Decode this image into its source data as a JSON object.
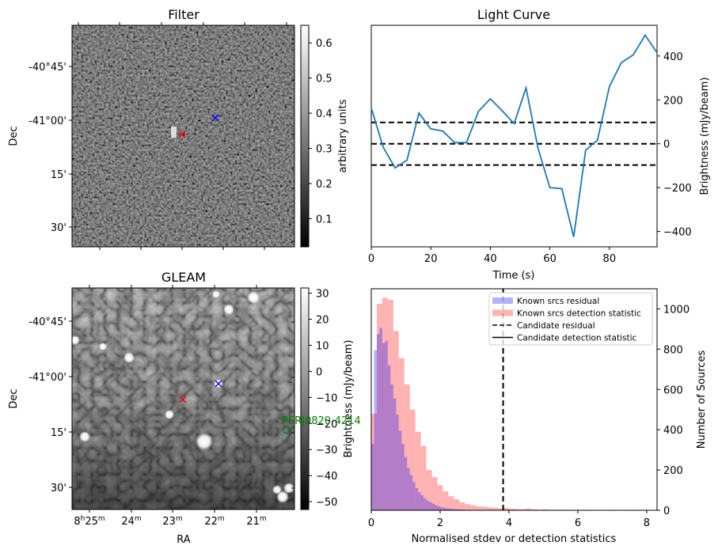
{
  "chart_data": [
    {
      "panel": "filter",
      "type": "heatmap",
      "title": "Filter",
      "xlabel": "",
      "ylabel": "Dec",
      "ytick_labels": [
        "-40°45'",
        "-41°00'",
        "15'",
        "30'"
      ],
      "colormap": "gray",
      "colorbar": {
        "label": "arbitrary units",
        "range": [
          0.02,
          0.65
        ],
        "tick_labels": [
          "0.1",
          "0.2",
          "0.3",
          "0.4",
          "0.5",
          "0.6"
        ],
        "ticks": [
          0.1,
          0.2,
          0.3,
          0.4,
          0.5,
          0.6
        ]
      },
      "markers": [
        {
          "name": "candidate",
          "symbol": "x",
          "color": "#ff0000"
        },
        {
          "name": "known-source",
          "symbol": "x",
          "color": "#0000ff"
        }
      ]
    },
    {
      "panel": "light-curve",
      "type": "line",
      "title": "Light Curve",
      "xlabel": "Time (s)",
      "ylabel": "Brightness (mJy/beam)",
      "xlim": [
        0,
        96
      ],
      "ylim": [
        -470,
        540
      ],
      "xtick_labels": [
        "0",
        "20",
        "40",
        "60",
        "80"
      ],
      "xticks": [
        0,
        20,
        40,
        60,
        80
      ],
      "ytick_labels": [
        "−400",
        "−200",
        "0",
        "200",
        "400"
      ],
      "yticks": [
        -400,
        -200,
        0,
        200,
        400
      ],
      "yaxis_side": "right",
      "series": [
        {
          "name": "light-curve",
          "color": "#1f77b4",
          "x": [
            0,
            4,
            8,
            12,
            16,
            20,
            24,
            28,
            32,
            36,
            40,
            44,
            48,
            52,
            56,
            60,
            64,
            68,
            72,
            76,
            80,
            84,
            88,
            92,
            96
          ],
          "y": [
            163,
            -15,
            -110,
            -75,
            140,
            68,
            58,
            5,
            5,
            148,
            205,
            150,
            92,
            255,
            -20,
            -200,
            -205,
            -425,
            -30,
            17,
            260,
            370,
            405,
            495,
            415
          ]
        }
      ],
      "hlines": [
        {
          "y": 97,
          "style": "dashed",
          "color": "#000000"
        },
        {
          "y": 0,
          "style": "dashed",
          "color": "#000000"
        },
        {
          "y": -97,
          "style": "dashed",
          "color": "#000000"
        }
      ]
    },
    {
      "panel": "gleam",
      "type": "heatmap",
      "title": "GLEAM",
      "xlabel": "RA",
      "ylabel": "Dec",
      "xtick_labels": [
        "8h25m",
        "24m",
        "23m",
        "22m",
        "21m"
      ],
      "ytick_labels": [
        "-40°45'",
        "-41°00'",
        "15'",
        "30'"
      ],
      "colormap": "gray",
      "colorbar": {
        "label": "Brightness (mJy/beam)",
        "range": [
          -53,
          32
        ],
        "tick_labels": [
          "30",
          "20",
          "10",
          "0",
          "−10",
          "−20",
          "−30",
          "−40",
          "−50"
        ],
        "ticks": [
          30,
          20,
          10,
          0,
          -10,
          -20,
          -30,
          -40,
          -50
        ]
      },
      "markers": [
        {
          "name": "candidate",
          "symbol": "x",
          "color": "#ff0000"
        },
        {
          "name": "known-source",
          "symbol": "x",
          "color": "#0000ff"
        },
        {
          "name": "pulsar",
          "symbol": "o",
          "color": "#008000",
          "label": "PSRJ0820-4214"
        }
      ]
    },
    {
      "panel": "histogram",
      "type": "bar",
      "title": "",
      "xlabel": "Normalised stdev or detection statistics",
      "ylabel": "Number of Sources",
      "xlim": [
        0,
        8.3
      ],
      "ylim": [
        0,
        1100
      ],
      "xtick_labels": [
        "0",
        "2",
        "4",
        "6",
        "8"
      ],
      "xticks": [
        0,
        2,
        4,
        6,
        8
      ],
      "ytick_labels": [
        "0",
        "200",
        "400",
        "600",
        "800",
        "1000"
      ],
      "yticks": [
        0,
        200,
        400,
        600,
        800,
        1000
      ],
      "yaxis_side": "right",
      "legend": "top-right",
      "series": [
        {
          "name": "Known srcs residual",
          "color": "#0000ff",
          "alpha": 0.3,
          "bin_start": 0,
          "bin_width": 0.08,
          "counts": [
            330,
            795,
            875,
            905,
            830,
            840,
            720,
            625,
            555,
            475,
            395,
            330,
            265,
            210,
            175,
            140,
            110,
            90,
            75,
            60,
            48,
            40,
            32,
            25,
            20,
            16,
            12,
            10,
            8,
            7,
            6,
            5,
            4,
            3,
            3,
            2,
            2,
            2,
            1,
            1
          ]
        },
        {
          "name": "Known srcs detection statistic",
          "color": "#ff0000",
          "alpha": 0.3,
          "bin_start": 0,
          "bin_width": 0.16,
          "counts": [
            480,
            1025,
            1055,
            1045,
            890,
            755,
            625,
            500,
            390,
            320,
            200,
            165,
            125,
            95,
            70,
            55,
            40,
            30,
            25,
            20,
            18,
            15,
            12,
            10,
            12,
            8,
            6,
            5,
            8,
            4,
            3,
            5,
            3,
            2,
            3,
            2,
            2,
            1,
            2,
            1,
            1,
            1,
            1,
            2,
            1,
            1,
            1,
            2,
            1,
            1
          ]
        }
      ],
      "vlines": [
        {
          "name": "Candidate residual",
          "x": 3.83,
          "style": "dashed",
          "color": "#000000"
        }
      ],
      "legend_entries": [
        {
          "label": "Known srcs residual",
          "kind": "patch",
          "color": "#0000ff"
        },
        {
          "label": "Known srcs detection statistic",
          "kind": "patch",
          "color": "#ff0000"
        },
        {
          "label": "Candidate residual",
          "kind": "dashed",
          "color": "#000000"
        },
        {
          "label": "Candidate detection statistic",
          "kind": "solid",
          "color": "#000000"
        }
      ]
    }
  ]
}
